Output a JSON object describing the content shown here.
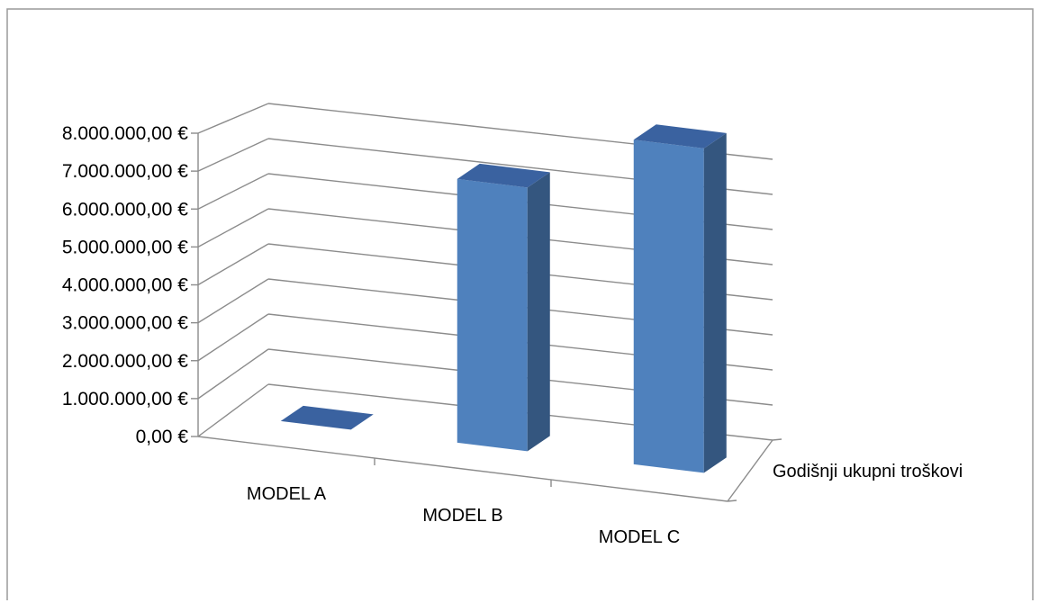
{
  "chart_data": {
    "type": "bar",
    "style": "3d-column",
    "categories": [
      "MODEL A",
      "MODEL B",
      "MODEL C"
    ],
    "series": [
      {
        "name": "Godišnji ukupni troškovi",
        "values": [
          0,
          6500000,
          8000000
        ]
      }
    ],
    "ylim": [
      0,
      8000000
    ],
    "y_ticks": [
      "0,00 €",
      "1.000.000,00 €",
      "2.000.000,00 €",
      "3.000.000,00 €",
      "4.000.000,00 €",
      "5.000.000,00 €",
      "6.000.000,00 €",
      "7.000.000,00 €",
      "8.000.000,00 €"
    ],
    "grid": true,
    "bar_color": "#4F81BD",
    "title": "",
    "xlabel": "",
    "ylabel": ""
  }
}
